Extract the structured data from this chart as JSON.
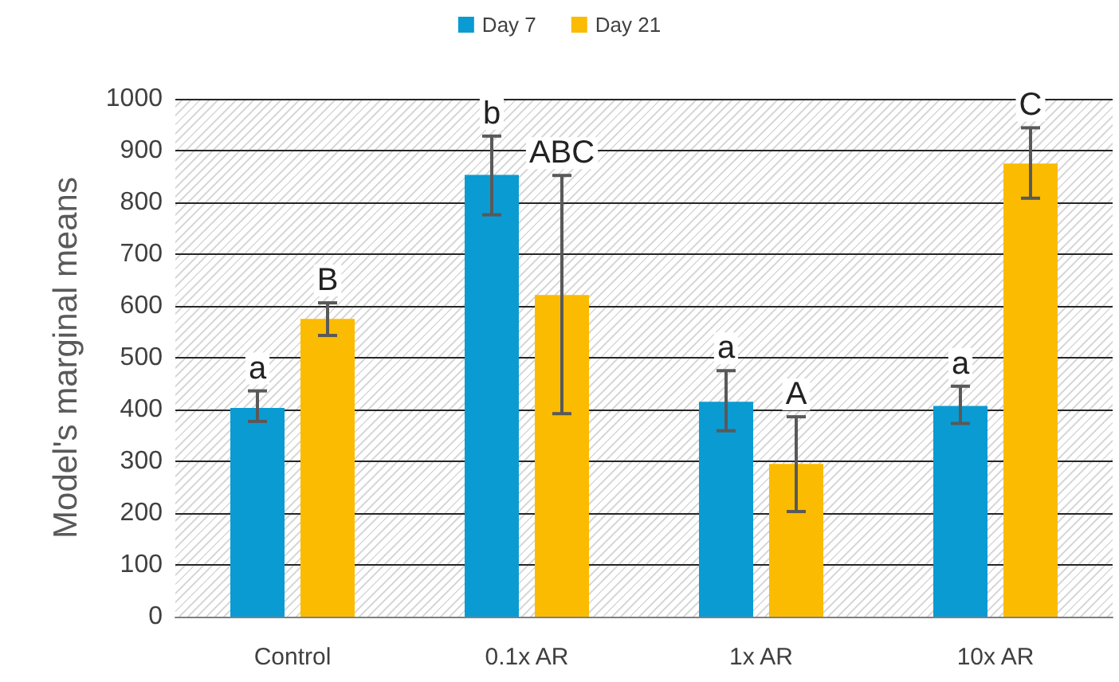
{
  "chart_data": {
    "type": "bar",
    "ylabel": "Model's marginal means",
    "categories": [
      "Control",
      "0.1x AR",
      "1x AR",
      "10x AR"
    ],
    "series": [
      {
        "name": "Day 7",
        "color": "#0b9bd3",
        "values": [
          403,
          853,
          415,
          407
        ],
        "errors": [
          [
            377,
            436
          ],
          [
            776,
            928
          ],
          [
            359,
            475
          ],
          [
            373,
            445
          ]
        ]
      },
      {
        "name": "Day 21",
        "color": "#fbbb00",
        "values": [
          575,
          621,
          295,
          875
        ],
        "errors": [
          [
            543,
            606
          ],
          [
            392,
            852
          ],
          [
            203,
            386
          ],
          [
            808,
            944
          ]
        ]
      }
    ],
    "ylim": [
      0,
      1000
    ],
    "yticks": [
      0,
      100,
      200,
      300,
      400,
      500,
      600,
      700,
      800,
      900,
      1000
    ],
    "grid": "y",
    "legend": "top",
    "annotations": [
      "a",
      "B",
      "b",
      "ABC",
      "a",
      "A",
      "a",
      "C"
    ]
  }
}
